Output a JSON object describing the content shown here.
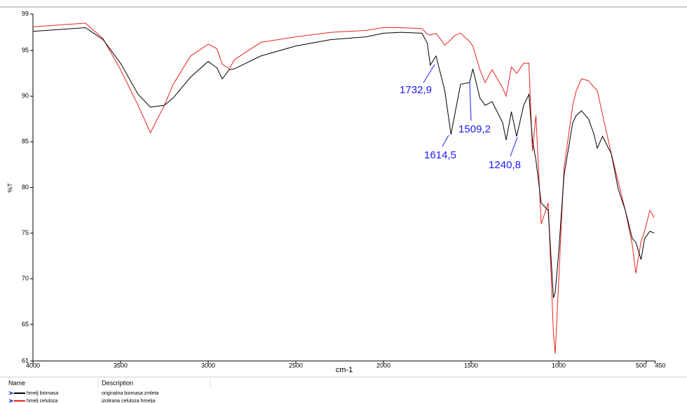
{
  "chart_data": {
    "type": "line",
    "x_label": "cm-1",
    "y_label": "%T",
    "xlim": [
      4000,
      450
    ],
    "ylim": [
      61,
      99
    ],
    "xticks": [
      4000,
      3500,
      3000,
      2500,
      2000,
      1500,
      1000,
      500,
      450
    ],
    "yticks": [
      61,
      65,
      70,
      75,
      80,
      85,
      90,
      95,
      99
    ],
    "grid": false,
    "x": [
      4000,
      3700,
      3600,
      3500,
      3400,
      3330,
      3250,
      3200,
      3100,
      3000,
      2950,
      2920,
      2880,
      2850,
      2700,
      2500,
      2300,
      2100,
      2000,
      1900,
      1780,
      1750,
      1733,
      1700,
      1650,
      1615,
      1590,
      1560,
      1509,
      1490,
      1450,
      1420,
      1380,
      1320,
      1300,
      1270,
      1240,
      1200,
      1170,
      1150,
      1130,
      1100,
      1060,
      1030,
      1020,
      1000,
      970,
      920,
      900,
      870,
      830,
      800,
      780,
      750,
      700,
      660,
      620,
      580,
      560,
      530,
      510,
      480,
      455
    ],
    "series": [
      {
        "name": "hmelj biomasa",
        "description": "originalna biomasa zmleta",
        "color": "#000000",
        "values": [
          97.1,
          97.5,
          96.2,
          93.6,
          90.2,
          88.8,
          89.0,
          89.8,
          92.1,
          93.8,
          93.1,
          91.9,
          92.9,
          93.0,
          94.4,
          95.5,
          96.2,
          96.5,
          96.9,
          97.0,
          96.9,
          95.8,
          93.4,
          94.4,
          90.6,
          85.8,
          88.3,
          91.3,
          91.5,
          93.0,
          89.8,
          89.0,
          89.4,
          87.1,
          85.2,
          88.3,
          85.6,
          89.0,
          90.2,
          85.2,
          83.0,
          78.3,
          77.5,
          67.9,
          68.5,
          72.9,
          81.3,
          87.1,
          87.9,
          88.4,
          87.5,
          85.9,
          84.3,
          85.6,
          83.7,
          79.8,
          77.5,
          74.4,
          74.0,
          72.1,
          74.4,
          75.2,
          75.0
        ]
      },
      {
        "name": "hmelj celuloza",
        "description": "izolirana celuloza hmelja",
        "color": "#e8221e",
        "values": [
          97.6,
          98.0,
          96.3,
          92.9,
          89.0,
          86.0,
          89.0,
          91.3,
          94.4,
          95.7,
          95.2,
          93.5,
          93.0,
          94.0,
          95.9,
          96.5,
          97.0,
          97.2,
          97.5,
          97.5,
          97.4,
          96.8,
          96.7,
          96.9,
          95.6,
          96.2,
          96.7,
          96.9,
          96.0,
          95.5,
          92.9,
          91.5,
          92.9,
          90.9,
          90.0,
          93.2,
          92.5,
          93.6,
          93.6,
          84.0,
          87.9,
          76.0,
          78.3,
          64.0,
          61.8,
          69.8,
          82.1,
          89.0,
          90.6,
          91.9,
          91.7,
          91.0,
          90.6,
          88.0,
          83.7,
          80.6,
          77.5,
          73.7,
          70.6,
          74.1,
          75.2,
          77.5,
          76.7
        ]
      }
    ],
    "annotations": [
      "1732,9",
      "1509,2",
      "1614,5",
      "1240,8"
    ],
    "legend_headers": [
      "Name",
      "Description"
    ]
  }
}
